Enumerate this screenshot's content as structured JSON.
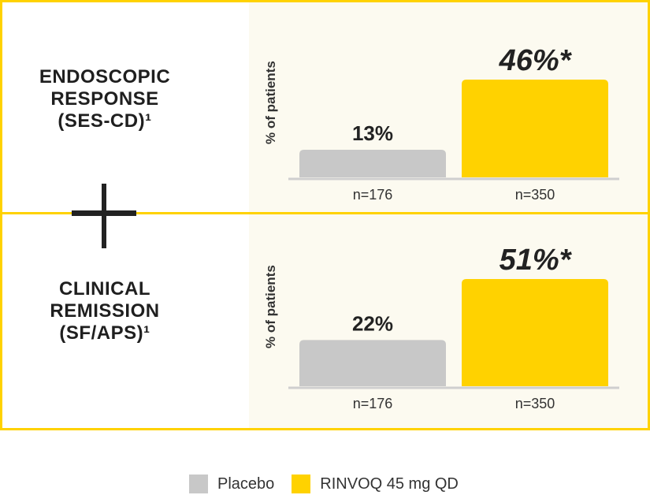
{
  "panels": [
    {
      "title_lines": [
        "ENDOSCOPIC",
        "RESPONSE",
        "(SES-CD)¹"
      ],
      "ylabel": "% of patients"
    },
    {
      "title_lines": [
        "CLINICAL",
        "REMISSION",
        "(SF/APS)¹"
      ],
      "ylabel": "% of patients"
    }
  ],
  "legend": {
    "items": [
      {
        "label": "Placebo",
        "color": "#C8C8C8"
      },
      {
        "label": "RINVOQ 45 mg QD",
        "color": "#FFD200"
      }
    ]
  },
  "colors": {
    "border": "#FFD200",
    "placebo": "#C8C8C8",
    "rinvoq": "#FFD200"
  },
  "plus_icon": "plus-icon",
  "chart_data": [
    {
      "type": "bar",
      "categories": [
        "n=176",
        "n=350"
      ],
      "series": [
        {
          "values": [
            13,
            46
          ]
        }
      ],
      "data_labels": [
        "13%",
        "46%*"
      ],
      "ylabel": "% of patients",
      "ylim": [
        0,
        50
      ]
    },
    {
      "type": "bar",
      "categories": [
        "n=176",
        "n=350"
      ],
      "series": [
        {
          "values": [
            22,
            51
          ]
        }
      ],
      "data_labels": [
        "22%",
        "51%*"
      ],
      "ylabel": "% of patients",
      "ylim": [
        0,
        55
      ]
    }
  ]
}
